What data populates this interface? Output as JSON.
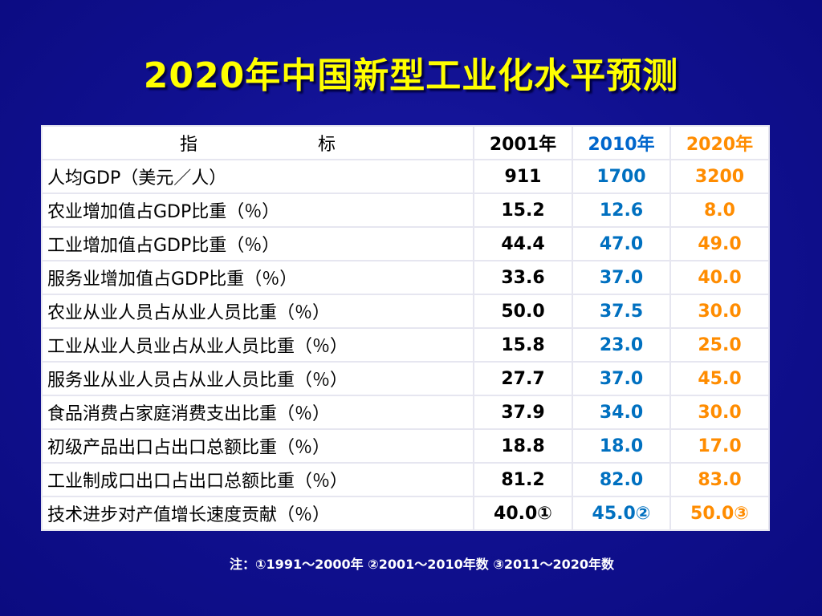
{
  "title": "2020年中国新型工业化水平预测",
  "table": {
    "headers": {
      "label_part1": "指",
      "label_part2": "标",
      "y2001": "2001年",
      "y2010": "2010年",
      "y2020": "2020年"
    },
    "rows": [
      {
        "label": "人均GDP（美元／人）",
        "y2001": "911",
        "y2010": "1700",
        "y2020": "3200"
      },
      {
        "label": "农业增加值占GDP比重（％）",
        "y2001": "15.2",
        "y2010": "12.6",
        "y2020": "8.0"
      },
      {
        "label": "工业增加值占GDP比重（％）",
        "y2001": "44.4",
        "y2010": "47.0",
        "y2020": "49.0"
      },
      {
        "label": "服务业增加值占GDP比重（％）",
        "y2001": "33.6",
        "y2010": "37.0",
        "y2020": "40.0"
      },
      {
        "label": "农业从业人员占从业人员比重（％）",
        "y2001": "50.0",
        "y2010": "37.5",
        "y2020": "30.0"
      },
      {
        "label": "工业从业人员业占从业人员比重（％）",
        "y2001": "15.8",
        "y2010": "23.0",
        "y2020": "25.0"
      },
      {
        "label": "服务业从业人员占从业人员比重（％）",
        "y2001": "27.7",
        "y2010": "37.0",
        "y2020": "45.0"
      },
      {
        "label": "食品消费占家庭消费支出比重（％）",
        "y2001": "37.9",
        "y2010": "34.0",
        "y2020": "30.0"
      },
      {
        "label": "初级产品出口占出口总额比重（％）",
        "y2001": "18.8",
        "y2010": "18.0",
        "y2020": "17.0"
      },
      {
        "label": "工业制成口出口占出口总额比重（％）",
        "y2001": "81.2",
        "y2010": "82.0",
        "y2020": "83.0"
      },
      {
        "label": "技术进步对产值增长速度贡献（％）",
        "y2001": "40.0①",
        "y2010": "45.0②",
        "y2020": "50.0③"
      }
    ]
  },
  "note": "注：①1991～2000年 ②2001～2010年数 ③2011～2020年数",
  "colors": {
    "background": "#10108f",
    "title": "#ffff00",
    "col_2010": "#0070c0",
    "col_2020": "#ff8c00",
    "note": "#ffffff"
  }
}
